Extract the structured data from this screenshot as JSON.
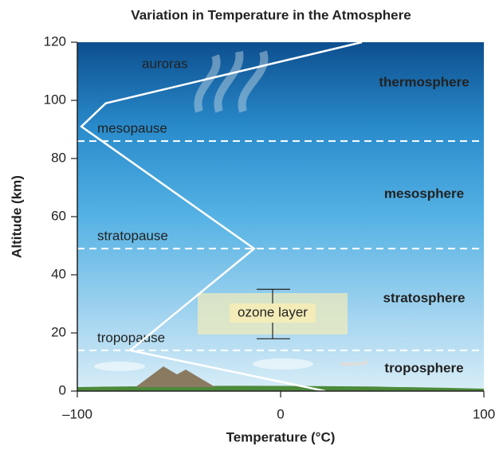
{
  "chart_data": {
    "type": "line",
    "title": "Variation in Temperature in the Atmosphere",
    "x_label": "Temperature (°C)",
    "y_label": "Altitude (km)",
    "x": [
      22,
      -74,
      -13,
      -98,
      -86,
      40
    ],
    "values": [
      0,
      14,
      49,
      91,
      99,
      120
    ],
    "color": "#ffffff",
    "xlim": [
      -100,
      100
    ],
    "xticks": [
      {
        "value": -100,
        "label": "–100"
      },
      0,
      100
    ],
    "ylim": [
      0,
      120
    ],
    "yticks": [
      0,
      20,
      40,
      60,
      80,
      100,
      120
    ],
    "boundaries": [
      {
        "label": "mesopause",
        "altitude": 86
      },
      {
        "label": "stratopause",
        "altitude": 49
      },
      {
        "label": "tropopause",
        "altitude": 14
      }
    ],
    "layers": [
      "thermosphere",
      "mesosphere",
      "stratosphere",
      "troposphere"
    ],
    "aurora_label": "auroras",
    "ozone_layer": {
      "label": "ozone layer",
      "range": [
        18,
        35
      ]
    }
  }
}
